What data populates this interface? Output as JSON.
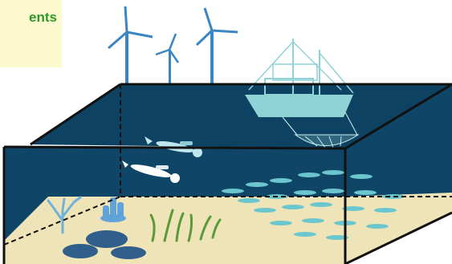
{
  "label": {
    "text": "ents",
    "background": "#fdf9cf",
    "color": "#2e9a2a"
  },
  "colors": {
    "ocean": "#0f4566",
    "ocean_dark": "#0c3a58",
    "sand": "#efe3b8",
    "turbine": "#3a86c4",
    "ship": "#8fd3d6",
    "fish": "#6cc6ce",
    "diver": "#bfe6ee",
    "coral": "#6fb3d8",
    "rock": "#2f5f8a",
    "seagrass": "#5a9a3a",
    "frame": "#111111"
  },
  "elements": [
    "wind-turbine",
    "wind-turbine",
    "wind-turbine",
    "fishing-trawler",
    "trawl-net",
    "scuba-diver",
    "scuba-diver",
    "fish-school",
    "coral",
    "sponge",
    "seagrass",
    "rocks"
  ]
}
